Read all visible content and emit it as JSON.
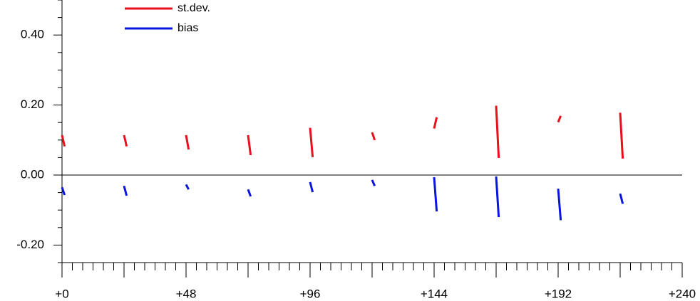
{
  "chart_data": {
    "type": "line",
    "x": [
      0,
      1,
      null,
      24,
      25,
      null,
      48,
      49,
      null,
      72,
      73,
      null,
      96,
      97,
      null,
      120,
      121,
      null,
      144,
      145,
      null,
      168,
      169,
      null,
      192,
      193,
      null,
      216,
      217
    ],
    "series": [
      {
        "name": "st.dev.",
        "color": "#e8101a",
        "values": [
          0.114,
          0.082,
          null,
          0.114,
          0.082,
          null,
          0.114,
          0.073,
          null,
          0.114,
          0.057,
          null,
          0.135,
          0.051,
          null,
          0.122,
          0.1,
          null,
          0.133,
          0.165,
          null,
          0.198,
          0.049,
          null,
          0.151,
          0.169,
          null,
          0.178,
          0.047
        ]
      },
      {
        "name": "bias",
        "color": "#0a16e0",
        "values": [
          -0.035,
          -0.057,
          null,
          -0.031,
          -0.059,
          null,
          -0.027,
          -0.041,
          null,
          -0.041,
          -0.061,
          null,
          -0.02,
          -0.049,
          null,
          -0.014,
          -0.031,
          null,
          -0.006,
          -0.104,
          null,
          -0.004,
          -0.12,
          null,
          -0.039,
          -0.129,
          null,
          -0.053,
          -0.082
        ]
      }
    ],
    "xlim": [
      0,
      240
    ],
    "xticks": [
      {
        "value": 0,
        "label": "+0"
      },
      {
        "value": 48,
        "label": "+48"
      },
      {
        "value": 96,
        "label": "+96"
      },
      {
        "value": 144,
        "label": "+144"
      },
      {
        "value": 192,
        "label": "+192"
      },
      {
        "value": 240,
        "label": "+240"
      }
    ],
    "xminorticks": [
      24,
      72,
      120,
      168,
      216,
      4,
      8,
      12,
      16,
      20,
      28,
      32,
      36,
      40,
      44,
      52,
      56,
      60,
      64,
      68,
      76,
      80,
      84,
      88,
      92,
      100,
      104,
      108,
      112,
      116,
      124,
      128,
      132,
      136,
      140,
      148,
      152,
      156,
      160,
      164,
      172,
      176,
      180,
      184,
      188,
      196,
      200,
      204,
      208,
      212,
      220,
      224,
      228,
      232,
      236
    ],
    "ylim": [
      -0.25,
      0.5
    ],
    "yticks": [
      {
        "value": -0.2,
        "label": "-0.20"
      },
      {
        "value": 0,
        "label": "0.00"
      },
      {
        "value": 0.2,
        "label": "0.20"
      },
      {
        "value": 0.4,
        "label": "0.40"
      }
    ],
    "yminorticks": [
      -0.25,
      -0.15,
      -0.1,
      -0.05,
      0.05,
      0.1,
      0.15,
      0.25,
      0.3,
      0.35,
      0.45,
      0.5
    ]
  }
}
